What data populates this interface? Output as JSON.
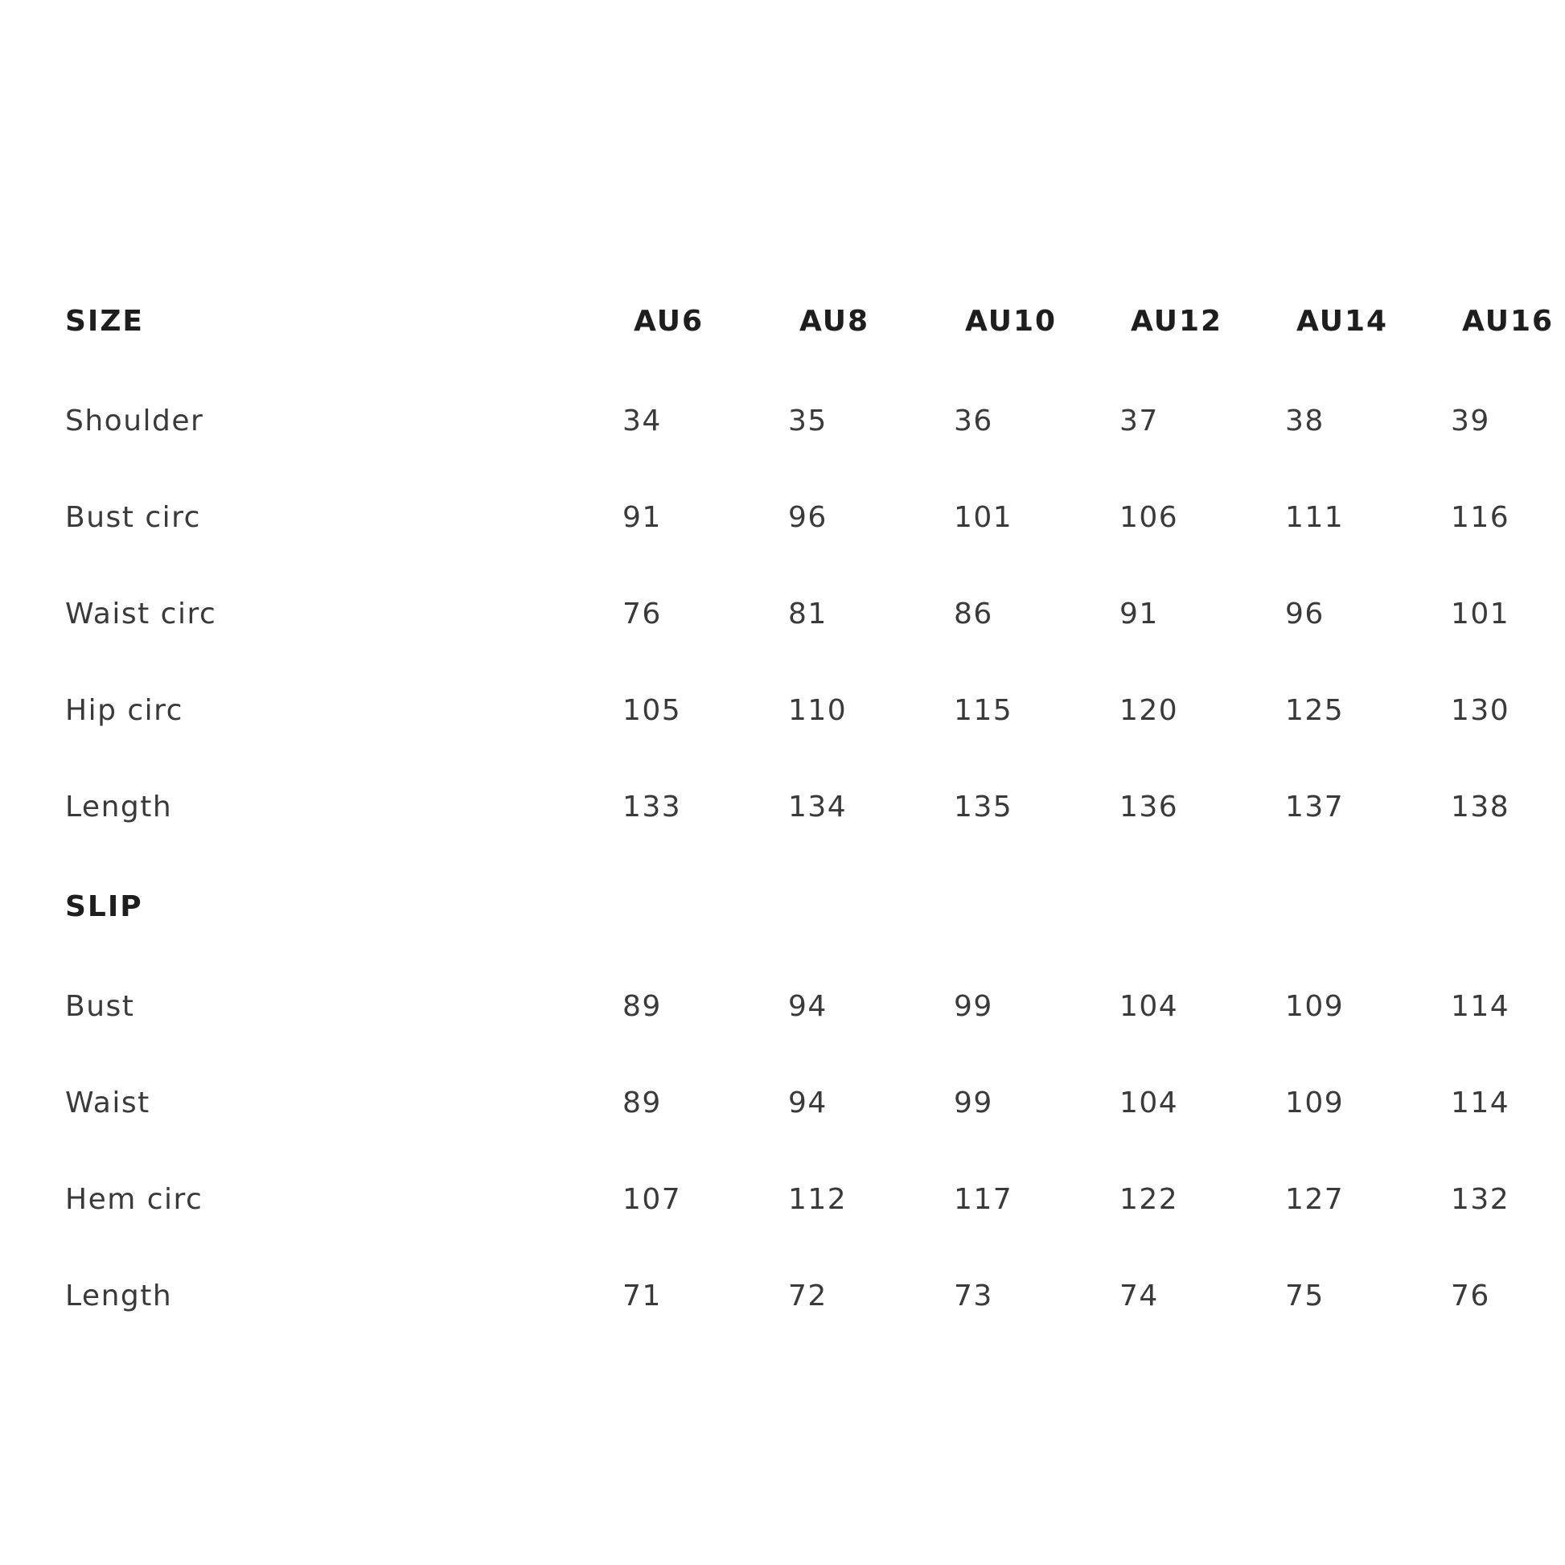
{
  "table": {
    "header": {
      "label": "SIZE",
      "sizes": [
        "AU6",
        "AU8",
        "AU10",
        "AU12",
        "AU14",
        "AU16"
      ]
    },
    "rows": [
      {
        "label": "Shoulder",
        "values": [
          "34",
          "35",
          "36",
          "37",
          "38",
          "39"
        ]
      },
      {
        "label": "Bust circ",
        "values": [
          "91",
          "96",
          "101",
          "106",
          "111",
          "116"
        ]
      },
      {
        "label": "Waist circ",
        "values": [
          "76",
          "81",
          "86",
          "91",
          "96",
          "101"
        ]
      },
      {
        "label": "Hip circ",
        "values": [
          "105",
          "110",
          "115",
          "120",
          "125",
          "130"
        ]
      },
      {
        "label": "Length",
        "values": [
          "133",
          "134",
          "135",
          "136",
          "137",
          "138"
        ]
      }
    ],
    "slip_header": {
      "label": "SLIP"
    },
    "slip_rows": [
      {
        "label": "Bust",
        "values": [
          "89",
          "94",
          "99",
          "104",
          "109",
          "114"
        ]
      },
      {
        "label": "Waist",
        "values": [
          "89",
          "94",
          "99",
          "104",
          "109",
          "114"
        ]
      },
      {
        "label": "Hem circ",
        "values": [
          "107",
          "112",
          "117",
          "122",
          "127",
          "132"
        ]
      },
      {
        "label": "Length",
        "values": [
          "71",
          "72",
          "73",
          "74",
          "75",
          "76"
        ]
      }
    ]
  }
}
